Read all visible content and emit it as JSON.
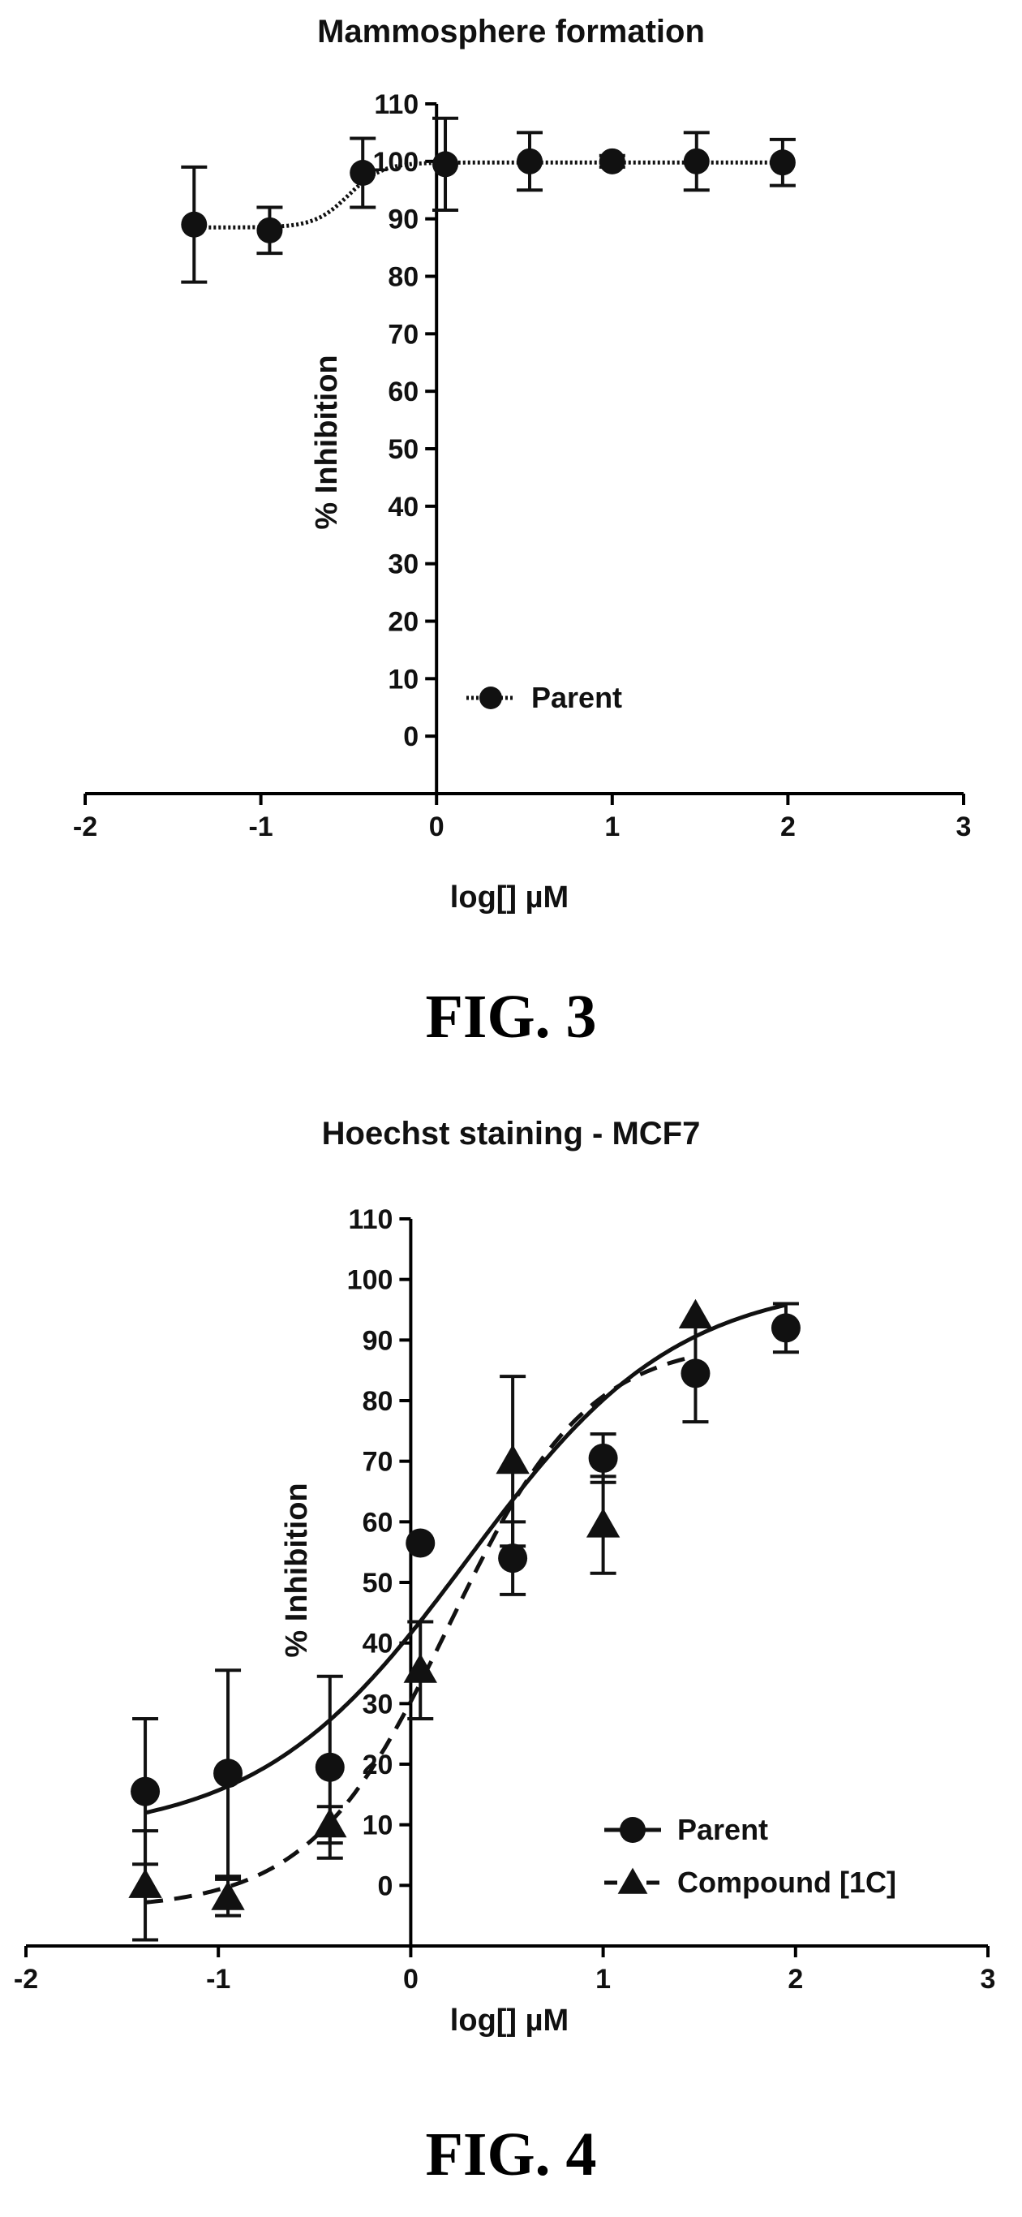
{
  "figures": [
    {
      "caption": "FIG. 3",
      "chart_data": {
        "type": "scatter",
        "title": "Mammosphere formation",
        "xlabel": "log[] µM",
        "ylabel": "% Inhibition",
        "xlim": [
          -2,
          3
        ],
        "ylim": [
          -10,
          110
        ],
        "xticks": [
          -2,
          -1,
          0,
          1,
          2,
          3
        ],
        "yticks": [
          0,
          10,
          20,
          30,
          40,
          50,
          60,
          70,
          80,
          90,
          100,
          110
        ],
        "x_axis_at_y": -10,
        "y_axis_at_x": 0,
        "legend_position": "lower-left",
        "grid": false,
        "series": [
          {
            "name": "Parent",
            "marker": "circle",
            "line": "dotted",
            "color": "#111111",
            "x": [
              -1.38,
              -0.95,
              -0.42,
              0.05,
              0.53,
              1.0,
              1.48,
              1.97
            ],
            "y": [
              89,
              88,
              98,
              99.5,
              100,
              100,
              100,
              99.8
            ],
            "err": [
              10,
              4,
              6,
              8,
              5,
              1,
              5,
              4
            ],
            "fit": {
              "type": "sigmoid",
              "bottom": 88.5,
              "top": 99.8,
              "logEC50": -0.5,
              "hill": 4.5
            }
          }
        ]
      }
    },
    {
      "caption": "FIG. 4",
      "chart_data": {
        "type": "scatter",
        "title": "Hoechst staining - MCF7",
        "xlabel": "log[] µM",
        "ylabel": "% Inhibition",
        "xlim": [
          -2,
          3
        ],
        "ylim": [
          -10,
          110
        ],
        "xticks": [
          -2,
          -1,
          0,
          1,
          2,
          3
        ],
        "yticks": [
          0,
          10,
          20,
          30,
          40,
          50,
          60,
          70,
          80,
          90,
          100,
          110
        ],
        "x_axis_at_y": -10,
        "y_axis_at_x": 0,
        "legend_position": "lower-right",
        "grid": false,
        "series": [
          {
            "name": "Parent",
            "marker": "circle",
            "line": "solid",
            "color": "#111111",
            "x": [
              -1.38,
              -0.95,
              -0.42,
              0.05,
              0.53,
              1.0,
              1.48,
              1.95
            ],
            "y": [
              15.5,
              18.5,
              19.5,
              56.5,
              54,
              70.5,
              84.5,
              92
            ],
            "err": [
              12,
              17,
              15,
              0,
              6,
              4,
              8,
              4
            ],
            "fit": {
              "type": "sigmoid",
              "bottom": 8,
              "top": 100,
              "logEC50": 0.3,
              "hill": 0.8
            }
          },
          {
            "name": "Compound [1C]",
            "marker": "triangle",
            "line": "dashed",
            "color": "#111111",
            "x": [
              -1.38,
              -0.95,
              -0.42,
              0.05,
              0.53,
              1.0,
              1.48
            ],
            "y": [
              0,
              -2,
              10,
              35.5,
              70,
              59.5,
              94
            ],
            "err": [
              9,
              3,
              3,
              8,
              14,
              8,
              0
            ],
            "fit": {
              "type": "sigmoid",
              "bottom": -4,
              "top": 90,
              "logEC50": 0.2,
              "hill": 1.2
            }
          }
        ]
      }
    }
  ]
}
